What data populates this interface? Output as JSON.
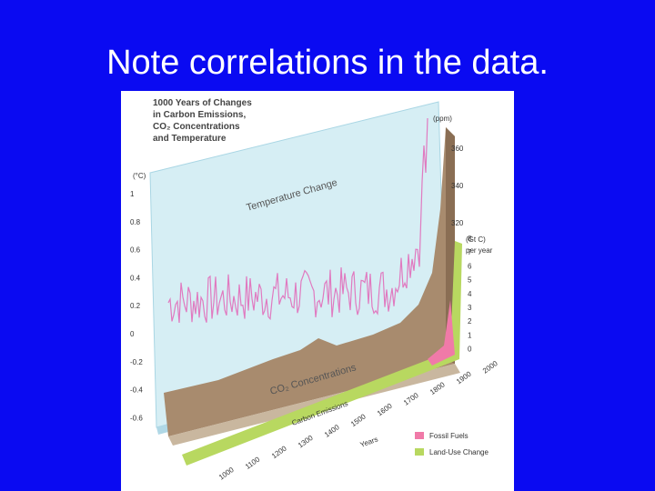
{
  "slide_title": "Note correlations in the data.",
  "figure": {
    "title_lines": [
      "1000 Years of Changes",
      "in Carbon Emissions,",
      "CO₂ Concentrations",
      "and Temperature"
    ],
    "temperature_unit": "(°C)",
    "temperature_ticks": [
      "1",
      "0.8",
      "0.6",
      "0.4",
      "0.2",
      "0",
      "-0.2",
      "-0.4",
      "-0.6"
    ],
    "co2_unit": "(ppm)",
    "co2_ticks": [
      "360",
      "340",
      "320"
    ],
    "emissions_unit": "(Gt C)",
    "emissions_unit_2": "per year",
    "emissions_ticks": [
      "8",
      "7",
      "6",
      "5",
      "4",
      "3",
      "2",
      "1",
      "0"
    ],
    "temperature_label": "Temperature Change",
    "co2_label": "CO₂ Concentrations",
    "emissions_label": "Carbon Emissions",
    "years": [
      "1000",
      "1100",
      "1200",
      "1300",
      "1400",
      "1500",
      "1600",
      "1700",
      "1800",
      "1900",
      "2000"
    ],
    "years_label": "Years",
    "legend": [
      "Fossil Fuels",
      "Land-Use Change"
    ]
  }
}
